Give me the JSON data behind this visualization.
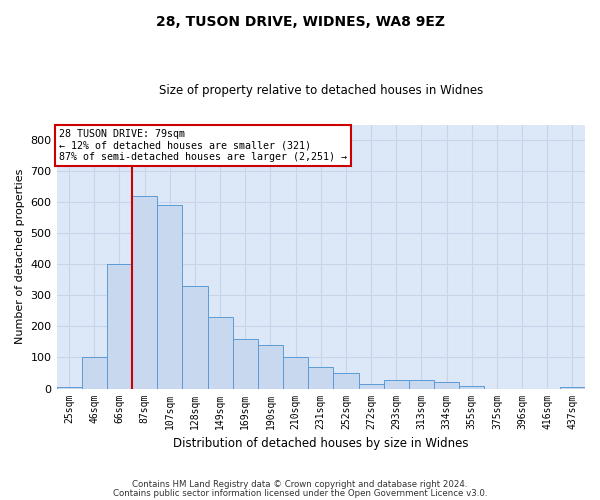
{
  "title1": "28, TUSON DRIVE, WIDNES, WA8 9EZ",
  "title2": "Size of property relative to detached houses in Widnes",
  "xlabel": "Distribution of detached houses by size in Widnes",
  "ylabel": "Number of detached properties",
  "categories": [
    "25sqm",
    "46sqm",
    "66sqm",
    "87sqm",
    "107sqm",
    "128sqm",
    "149sqm",
    "169sqm",
    "190sqm",
    "210sqm",
    "231sqm",
    "252sqm",
    "272sqm",
    "293sqm",
    "313sqm",
    "334sqm",
    "355sqm",
    "375sqm",
    "396sqm",
    "416sqm",
    "437sqm"
  ],
  "values": [
    5,
    100,
    400,
    620,
    590,
    330,
    230,
    160,
    140,
    100,
    70,
    50,
    15,
    28,
    28,
    22,
    8,
    0,
    0,
    0,
    5
  ],
  "bar_color": "#c8d9ef",
  "bar_edge_color": "#5b9bd5",
  "grid_color": "#c8d4e8",
  "background_color": "#dce8f8",
  "vline_color": "#cc0000",
  "annotation_text": "28 TUSON DRIVE: 79sqm\n← 12% of detached houses are smaller (321)\n87% of semi-detached houses are larger (2,251) →",
  "annotation_box_edgecolor": "#cc0000",
  "footer1": "Contains HM Land Registry data © Crown copyright and database right 2024.",
  "footer2": "Contains public sector information licensed under the Open Government Licence v3.0.",
  "ylim": [
    0,
    850
  ],
  "yticks": [
    0,
    100,
    200,
    300,
    400,
    500,
    600,
    700,
    800
  ]
}
